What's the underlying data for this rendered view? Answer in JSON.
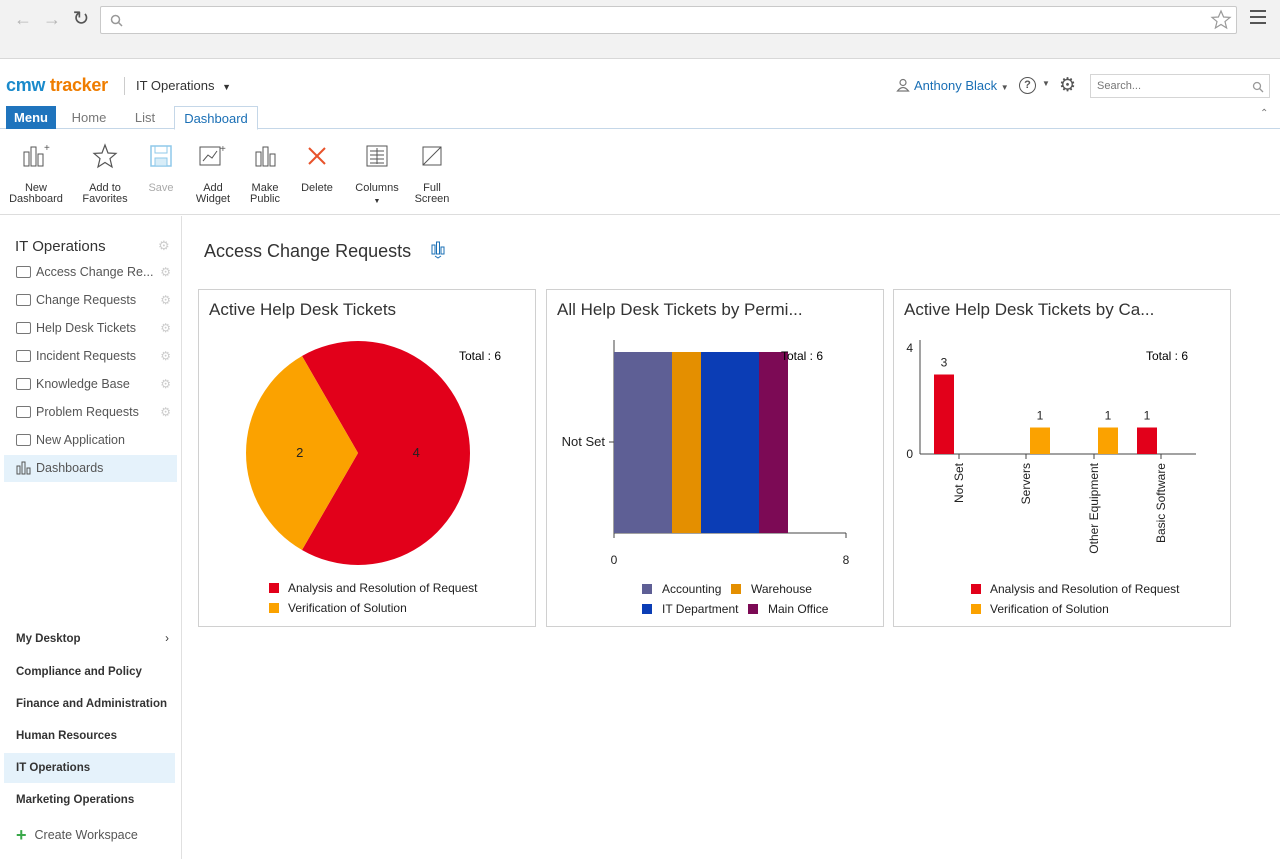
{
  "app": {
    "logo_part1": "cmw",
    "logo_part2": "tracker",
    "workspace": "IT Operations",
    "user": "Anthony Black",
    "search_placeholder": "Search..."
  },
  "tabs": [
    {
      "label": "Menu"
    },
    {
      "label": "Home"
    },
    {
      "label": "List"
    },
    {
      "label": "Dashboard"
    }
  ],
  "ribbon": [
    {
      "label": "New Dashboard",
      "icon": "new-dashboard-icon"
    },
    {
      "label": "Add to Favorites",
      "icon": "star-icon"
    },
    {
      "label": "Save",
      "icon": "save-icon",
      "disabled": true
    },
    {
      "label": "Add Widget",
      "icon": "add-widget-icon"
    },
    {
      "label": "Make Public",
      "icon": "make-public-icon"
    },
    {
      "label": "Delete",
      "icon": "delete-icon"
    },
    {
      "label": "Columns",
      "icon": "columns-icon"
    },
    {
      "label": "Full Screen",
      "icon": "full-screen-icon"
    }
  ],
  "sidebar": {
    "title": "IT Operations",
    "items": [
      {
        "label": "Access Change Re..."
      },
      {
        "label": "Change Requests"
      },
      {
        "label": "Help Desk Tickets"
      },
      {
        "label": "Incident Requests"
      },
      {
        "label": "Knowledge Base"
      },
      {
        "label": "Problem Requests"
      },
      {
        "label": "New Application"
      },
      {
        "label": "Dashboards"
      }
    ],
    "workspaces": [
      {
        "label": "My Desktop"
      },
      {
        "label": "Compliance and Policy"
      },
      {
        "label": "Finance and Administration"
      },
      {
        "label": "Human Resources"
      },
      {
        "label": "IT Operations"
      },
      {
        "label": "Marketing Operations"
      }
    ],
    "create_workspace": "Create Workspace"
  },
  "page": {
    "title": "Access Change Requests"
  },
  "colors": {
    "red": "#e2001a",
    "orange": "#fba200",
    "accounting": "#5e5f95",
    "warehouse": "#e48f00",
    "it_department": "#0b3db5",
    "main_office": "#7c0a55"
  },
  "widgets": [
    {
      "title": "Active Help Desk Tickets"
    },
    {
      "title": "All Help Desk Tickets by Permi..."
    },
    {
      "title": "Active Help Desk Tickets by Ca..."
    }
  ],
  "chart_data": [
    {
      "type": "pie",
      "total_label": "Total : 6",
      "series": [
        {
          "name": "Analysis and Resolution of Request",
          "value": 4,
          "color": "#e2001a"
        },
        {
          "name": "Verification of Solution",
          "value": 2,
          "color": "#fba200"
        }
      ]
    },
    {
      "type": "bar",
      "orientation": "horizontal-stacked",
      "total_label": "Total : 6",
      "categories": [
        "Not Set"
      ],
      "xlim": [
        0,
        8
      ],
      "x_ticks": [
        "0",
        "8"
      ],
      "series": [
        {
          "name": "Accounting",
          "values": [
            2
          ],
          "color": "#5e5f95"
        },
        {
          "name": "Warehouse",
          "values": [
            1
          ],
          "color": "#e48f00"
        },
        {
          "name": "IT Department",
          "values": [
            2
          ],
          "color": "#0b3db5"
        },
        {
          "name": "Main Office",
          "values": [
            1
          ],
          "color": "#7c0a55"
        }
      ]
    },
    {
      "type": "bar",
      "total_label": "Total : 6",
      "categories": [
        "Not Set",
        "Servers",
        "Other Equipment",
        "Basic Software"
      ],
      "ylim": [
        0,
        4
      ],
      "y_ticks": [
        "4",
        "0"
      ],
      "series": [
        {
          "name": "Analysis and Resolution of Request",
          "values": [
            3,
            0,
            0,
            1
          ],
          "color": "#e2001a"
        },
        {
          "name": "Verification of Solution",
          "values": [
            0,
            1,
            1,
            0
          ],
          "color": "#fba200"
        }
      ],
      "data_labels": [
        "3",
        "1",
        "1",
        "1"
      ]
    }
  ]
}
